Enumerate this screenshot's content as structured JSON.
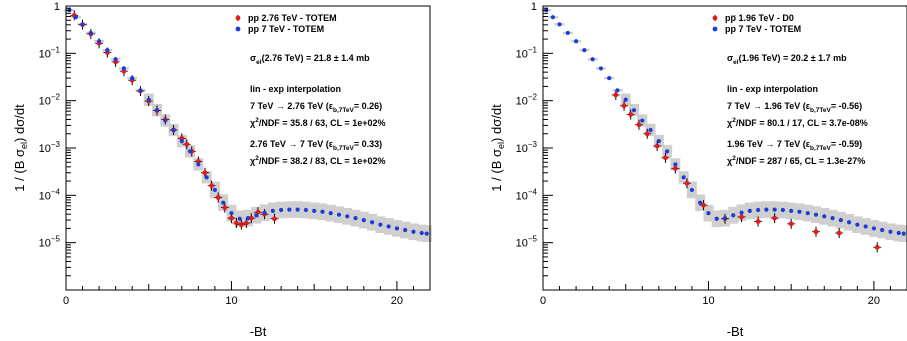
{
  "chart_data": [
    {
      "type": "scatter",
      "title": "",
      "xlabel": "-Bt",
      "ylabel": "1 / (B σ_el)  dσ/dt",
      "xlim": [
        0,
        22
      ],
      "ylim_log10": [
        -6,
        0
      ],
      "yscale": "log",
      "xticks": [
        {
          "v": 0,
          "label": "0"
        },
        {
          "v": 10,
          "label": "10"
        },
        {
          "v": 20,
          "label": "20"
        }
      ],
      "yticks": [
        {
          "exp": 0,
          "base": "1",
          "sup": ""
        },
        {
          "exp": -1,
          "base": "10",
          "sup": "−1"
        },
        {
          "exp": -2,
          "base": "10",
          "sup": "−2"
        },
        {
          "exp": -3,
          "base": "10",
          "sup": "−3"
        },
        {
          "exp": -4,
          "base": "10",
          "sup": "−4"
        },
        {
          "exp": -5,
          "base": "10",
          "sup": "−5"
        }
      ],
      "legend_position": "top-right",
      "series": [
        {
          "name": "pp 2.76 TeV - TOTEM",
          "color": "#e41a1c",
          "points": [
            [
              0.5,
              0.635
            ],
            [
              1.0,
              0.404
            ],
            [
              1.5,
              0.257
            ],
            [
              2.0,
              0.163
            ],
            [
              2.5,
              0.104
            ],
            [
              3.0,
              0.066
            ],
            [
              3.5,
              0.042
            ],
            [
              4.0,
              0.027
            ],
            [
              4.5,
              0.016
            ],
            [
              5.0,
              0.0098
            ],
            [
              5.5,
              0.0062
            ],
            [
              6.0,
              0.004
            ],
            [
              6.5,
              0.0024
            ],
            [
              7.0,
              0.0016
            ],
            [
              7.3,
              0.0012
            ],
            [
              7.6,
              0.00085
            ],
            [
              8.0,
              0.00052
            ],
            [
              8.4,
              0.0003
            ],
            [
              8.8,
              0.00016
            ],
            [
              9.2,
              9e-05
            ],
            [
              9.6,
              5.5e-05
            ],
            [
              10.0,
              3.3e-05
            ],
            [
              10.3,
              2.6e-05
            ],
            [
              10.6,
              2.4e-05
            ],
            [
              10.9,
              2.6e-05
            ],
            [
              11.2,
              3.3e-05
            ],
            [
              11.6,
              4.4e-05
            ],
            [
              12.0,
              4e-05
            ],
            [
              12.6,
              3.2e-05
            ]
          ]
        },
        {
          "name": "pp 7 TeV - TOTEM",
          "color": "#1f3bd6",
          "points": [
            [
              0.2,
              0.82
            ],
            [
              0.6,
              0.58
            ],
            [
              1.0,
              0.41
            ],
            [
              1.5,
              0.27
            ],
            [
              2.0,
              0.18
            ],
            [
              2.5,
              0.117
            ],
            [
              3.0,
              0.075
            ],
            [
              3.5,
              0.048
            ],
            [
              4.0,
              0.03
            ],
            [
              4.5,
              0.0165
            ],
            [
              5.0,
              0.0105
            ],
            [
              5.5,
              0.0063
            ],
            [
              6.0,
              0.0038
            ],
            [
              6.5,
              0.0024
            ],
            [
              7.0,
              0.0014
            ],
            [
              7.5,
              0.00085
            ],
            [
              8.0,
              0.00045
            ],
            [
              8.5,
              0.00024
            ],
            [
              9.0,
              0.00013
            ],
            [
              9.5,
              7e-05
            ],
            [
              10.0,
              4.2e-05
            ],
            [
              10.5,
              3.2e-05
            ],
            [
              11.0,
              3.3e-05
            ],
            [
              11.5,
              3.8e-05
            ],
            [
              12.0,
              4.3e-05
            ],
            [
              12.5,
              4.7e-05
            ],
            [
              13.0,
              4.9e-05
            ],
            [
              13.5,
              5e-05
            ],
            [
              14.0,
              5e-05
            ],
            [
              14.5,
              4.9e-05
            ],
            [
              15.0,
              4.7e-05
            ],
            [
              15.5,
              4.5e-05
            ],
            [
              16.0,
              4.2e-05
            ],
            [
              16.5,
              3.9e-05
            ],
            [
              17.0,
              3.6e-05
            ],
            [
              17.5,
              3.3e-05
            ],
            [
              18.0,
              3e-05
            ],
            [
              18.5,
              2.7e-05
            ],
            [
              19.0,
              2.4e-05
            ],
            [
              19.5,
              2.2e-05
            ],
            [
              20.0,
              2e-05
            ],
            [
              20.5,
              1.85e-05
            ],
            [
              21.0,
              1.7e-05
            ],
            [
              21.5,
              1.6e-05
            ],
            [
              21.8,
              1.55e-05
            ]
          ]
        }
      ],
      "annotations": [
        {
          "id": "sigma",
          "parts": [
            {
              "t": "σ"
            },
            {
              "t": "el",
              "sub": true
            },
            {
              "t": "(2.76 TeV) = 21.8 ± 1.4 mb"
            }
          ]
        },
        {
          "id": "heading",
          "parts": [
            {
              "t": "lin - exp interpolation"
            }
          ]
        },
        {
          "id": "line1",
          "parts": [
            {
              "t": "7 TeV → 2.76 TeV (ε"
            },
            {
              "t": "b,7TeV",
              "sub": true
            },
            {
              "t": "= 0.26)"
            }
          ]
        },
        {
          "id": "line2",
          "parts": [
            {
              "t": "χ"
            },
            {
              "t": "2",
              "sup": true
            },
            {
              "t": "/NDF = 35.8 / 63,  CL = 1e+02%"
            }
          ]
        },
        {
          "id": "line3",
          "parts": [
            {
              "t": "2.76 TeV → 7 TeV  (ε"
            },
            {
              "t": "b,7TeV",
              "sub": true
            },
            {
              "t": "= 0.33)"
            }
          ]
        },
        {
          "id": "line4",
          "parts": [
            {
              "t": "χ"
            },
            {
              "t": "2",
              "sup": true
            },
            {
              "t": "/NDF = 38.2 / 83,  CL = 1e+02%"
            }
          ]
        }
      ]
    },
    {
      "type": "scatter",
      "title": "",
      "xlabel": "-Bt",
      "ylabel": "1 / (B σ_el)  dσ/dt",
      "xlim": [
        0,
        22
      ],
      "ylim_log10": [
        -6,
        0
      ],
      "yscale": "log",
      "xticks": [
        {
          "v": 0,
          "label": "0"
        },
        {
          "v": 10,
          "label": "10"
        },
        {
          "v": 20,
          "label": "20"
        }
      ],
      "yticks": [
        {
          "exp": 0,
          "base": "1",
          "sup": ""
        },
        {
          "exp": -1,
          "base": "10",
          "sup": "−1"
        },
        {
          "exp": -2,
          "base": "10",
          "sup": "−2"
        },
        {
          "exp": -3,
          "base": "10",
          "sup": "−3"
        },
        {
          "exp": -4,
          "base": "10",
          "sup": "−4"
        },
        {
          "exp": -5,
          "base": "10",
          "sup": "−5"
        }
      ],
      "legend_position": "top-right",
      "series": [
        {
          "name": "pp̅ 1.96 TeV - D0",
          "color": "#e41a1c",
          "points": [
            [
              4.4,
              0.0132
            ],
            [
              4.9,
              0.0078
            ],
            [
              5.3,
              0.0051
            ],
            [
              5.8,
              0.0031
            ],
            [
              6.3,
              0.002
            ],
            [
              6.9,
              0.0011
            ],
            [
              7.4,
              0.00062
            ],
            [
              8.0,
              0.00037
            ],
            [
              8.7,
              0.00018
            ],
            [
              9.7,
              6.2e-05
            ],
            [
              11.0,
              3.2e-05
            ],
            [
              12.0,
              3.5e-05
            ],
            [
              13.0,
              2.8e-05
            ],
            [
              14.0,
              3.3e-05
            ],
            [
              15.0,
              2.5e-05
            ],
            [
              16.5,
              1.7e-05
            ],
            [
              17.9,
              1.6e-05
            ],
            [
              20.2,
              8e-06
            ]
          ]
        },
        {
          "name": "pp 7 TeV - TOTEM",
          "color": "#1f3bd6",
          "points": [
            [
              0.2,
              0.82
            ],
            [
              0.6,
              0.58
            ],
            [
              1.0,
              0.41
            ],
            [
              1.5,
              0.27
            ],
            [
              2.0,
              0.18
            ],
            [
              2.5,
              0.117
            ],
            [
              3.0,
              0.075
            ],
            [
              3.5,
              0.048
            ],
            [
              4.0,
              0.03
            ],
            [
              4.5,
              0.0165
            ],
            [
              5.0,
              0.0105
            ],
            [
              5.5,
              0.0063
            ],
            [
              6.0,
              0.0038
            ],
            [
              6.5,
              0.0024
            ],
            [
              7.0,
              0.0014
            ],
            [
              7.5,
              0.00085
            ],
            [
              8.0,
              0.00045
            ],
            [
              8.5,
              0.00024
            ],
            [
              9.0,
              0.00013
            ],
            [
              9.5,
              7e-05
            ],
            [
              10.0,
              4.2e-05
            ],
            [
              10.5,
              3.2e-05
            ],
            [
              11.0,
              3.3e-05
            ],
            [
              11.5,
              3.8e-05
            ],
            [
              12.0,
              4.3e-05
            ],
            [
              12.5,
              4.7e-05
            ],
            [
              13.0,
              4.9e-05
            ],
            [
              13.5,
              5e-05
            ],
            [
              14.0,
              5e-05
            ],
            [
              14.5,
              4.9e-05
            ],
            [
              15.0,
              4.7e-05
            ],
            [
              15.5,
              4.5e-05
            ],
            [
              16.0,
              4.2e-05
            ],
            [
              16.5,
              3.9e-05
            ],
            [
              17.0,
              3.6e-05
            ],
            [
              17.5,
              3.3e-05
            ],
            [
              18.0,
              3e-05
            ],
            [
              18.5,
              2.7e-05
            ],
            [
              19.0,
              2.4e-05
            ],
            [
              19.5,
              2.2e-05
            ],
            [
              20.0,
              2e-05
            ],
            [
              20.5,
              1.85e-05
            ],
            [
              21.0,
              1.7e-05
            ],
            [
              21.5,
              1.6e-05
            ],
            [
              21.8,
              1.55e-05
            ]
          ]
        }
      ],
      "annotations": [
        {
          "id": "sigma",
          "parts": [
            {
              "t": "σ"
            },
            {
              "t": "el",
              "sub": true
            },
            {
              "t": "(1.96 TeV) = 20.2 ± 1.7 mb"
            }
          ]
        },
        {
          "id": "heading",
          "parts": [
            {
              "t": "lin - exp interpolation"
            }
          ]
        },
        {
          "id": "line1",
          "parts": [
            {
              "t": "7 TeV → 1.96 TeV (ε"
            },
            {
              "t": "b,7TeV",
              "sub": true
            },
            {
              "t": "= -0.56)"
            }
          ]
        },
        {
          "id": "line2",
          "parts": [
            {
              "t": "χ"
            },
            {
              "t": "2",
              "sup": true
            },
            {
              "t": "/NDF = 80.1 / 17,  CL = 3.7e-08%"
            }
          ]
        },
        {
          "id": "line3",
          "parts": [
            {
              "t": "1.96 TeV → 7 TeV  (ε"
            },
            {
              "t": "b,7TeV",
              "sub": true
            },
            {
              "t": "= -0.59)"
            }
          ]
        },
        {
          "id": "line4",
          "parts": [
            {
              "t": "χ"
            },
            {
              "t": "2",
              "sup": true
            },
            {
              "t": "/NDF = 287 / 65,  CL = 1.3e-27%"
            }
          ]
        }
      ]
    }
  ]
}
